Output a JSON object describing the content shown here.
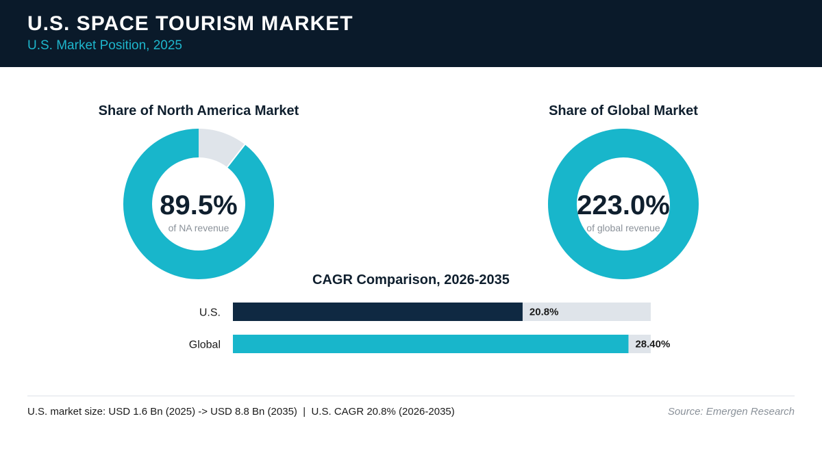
{
  "header": {
    "title": "U.S. SPACE TOURISM MARKET",
    "subtitle": "U.S. Market Position, 2025"
  },
  "colors": {
    "header_bg": "#0a1a2a",
    "accent": "#18b6cb",
    "dark_bar": "#0f2942",
    "track": "#dfe4ea"
  },
  "chart_data": [
    {
      "type": "pie",
      "title": "Share of North America Market",
      "center_value": "89.5%",
      "center_label": "of NA revenue",
      "value": 89.5,
      "max": 100
    },
    {
      "type": "pie",
      "title": "Share of Global Market",
      "center_value": "223.0%",
      "center_label": "of global revenue",
      "value": 223.0,
      "max": 100
    },
    {
      "type": "bar",
      "orientation": "horizontal",
      "title": "CAGR Comparison, 2026-2035",
      "categories": [
        "U.S.",
        "Global"
      ],
      "values": [
        20.8,
        28.4
      ],
      "value_labels": [
        "20.8%",
        "28.40%"
      ],
      "xlim": [
        0,
        30
      ]
    }
  ],
  "footer": {
    "note": "U.S. market size: USD 1.6 Bn (2025) -> USD 8.8 Bn (2035)  |  U.S. CAGR 20.8% (2026-2035)",
    "source": "Source: Emergen Research"
  }
}
